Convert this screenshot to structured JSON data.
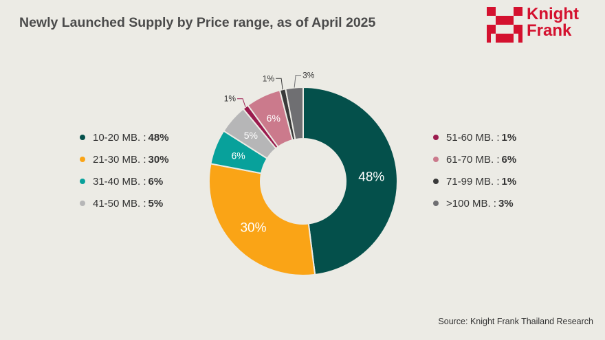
{
  "title": "Newly Launched Supply by Price range, as of April 2025",
  "logo": {
    "line1": "Knight",
    "line2": "Frank",
    "color": "#d4112f"
  },
  "source": "Source: Knight Frank Thailand Research",
  "colors": {
    "10-20": "#04504b",
    "21-30": "#faa416",
    "31-40": "#08a19b",
    "41-50": "#b6b6b7",
    "51-60": "#9b1b4e",
    "61-70": "#cb7a8c",
    "71-99": "#3a3a3a",
    "100+": "#6f6f72"
  },
  "chart_data": {
    "type": "pie",
    "donut": true,
    "categories": [
      "10-20 MB.",
      "21-30 MB.",
      "31-40 MB.",
      "41-50 MB.",
      "51-60 MB.",
      "61-70 MB.",
      "71-99 MB.",
      ">100 MB."
    ],
    "values": [
      48,
      30,
      6,
      5,
      1,
      6,
      1,
      3
    ],
    "labels": [
      "48%",
      "30%",
      "6%",
      "5%",
      "1%",
      "6%",
      "1%",
      "3%"
    ],
    "legend_placement": "left-and-right"
  },
  "legend": {
    "left": [
      {
        "label": "10-20 MB. :",
        "value": "48%",
        "color": "#04504b"
      },
      {
        "label": "21-30 MB. :",
        "value": "30%",
        "color": "#faa416"
      },
      {
        "label": "31-40 MB. :",
        "value": "6%",
        "color": "#08a19b"
      },
      {
        "label": "41-50 MB. :",
        "value": "5%",
        "color": "#b6b6b7"
      }
    ],
    "right": [
      {
        "label": "51-60 MB. :",
        "value": "1%",
        "color": "#9b1b4e"
      },
      {
        "label": "61-70 MB. :",
        "value": "6%",
        "color": "#cb7a8c"
      },
      {
        "label": "71-99 MB. :",
        "value": "1%",
        "color": "#3a3a3a"
      },
      {
        "label": ">100 MB. :",
        "value": "3%",
        "color": "#6f6f72"
      }
    ]
  }
}
